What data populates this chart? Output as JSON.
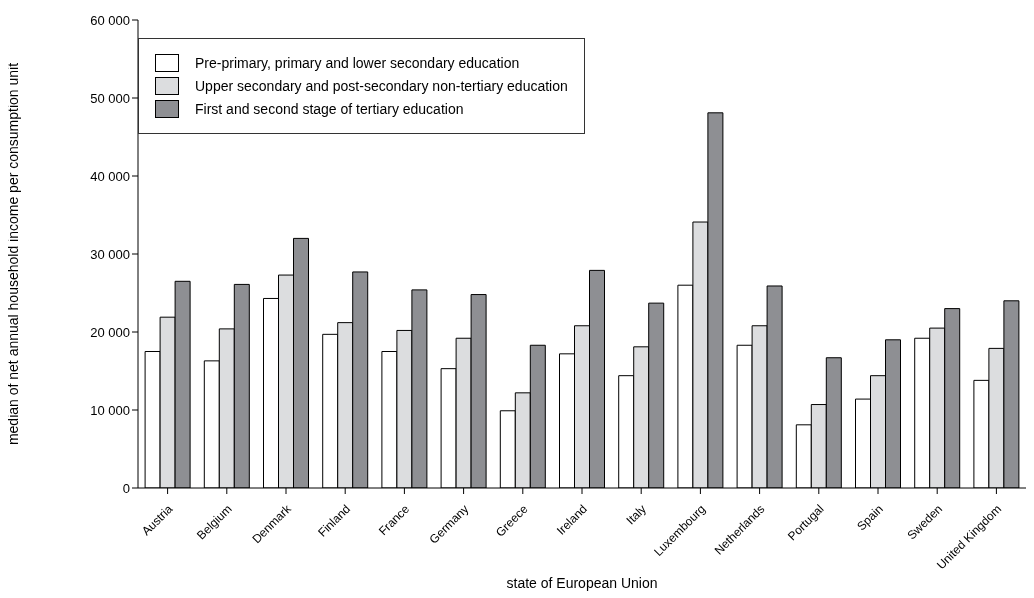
{
  "chart_data": {
    "type": "bar",
    "xlabel": "state of European Union",
    "ylabel": "median of net annual household income per consumption unit",
    "categories": [
      "Austria",
      "Belgium",
      "Denmark",
      "Finland",
      "France",
      "Germany",
      "Greece",
      "Ireland",
      "Italy",
      "Luxembourg",
      "Netherlands",
      "Portugal",
      "Spain",
      "Sweden",
      "United Kingdom"
    ],
    "series": [
      {
        "name": "Pre-primary, primary and lower secondary education",
        "color": "#ffffff",
        "values": [
          17500,
          16300,
          24300,
          19700,
          17500,
          15300,
          9900,
          17200,
          14400,
          26000,
          18300,
          8100,
          11400,
          19200,
          13800
        ]
      },
      {
        "name": "Upper secondary and post-secondary non-tertiary education",
        "color": "#dcdddf",
        "values": [
          21900,
          20400,
          27300,
          21200,
          20200,
          19200,
          12200,
          20800,
          18100,
          34100,
          20800,
          10700,
          14400,
          20500,
          17900
        ]
      },
      {
        "name": "First and second stage of tertiary education",
        "color": "#8e8f93",
        "values": [
          26500,
          26100,
          32000,
          27700,
          25400,
          24800,
          18300,
          27900,
          23700,
          48100,
          25900,
          16700,
          19000,
          23000,
          24000
        ]
      }
    ],
    "ylim": [
      0,
      60000
    ],
    "yticks": [
      0,
      {
        "value": 10000,
        "label": "10 000"
      },
      {
        "value": 20000,
        "label": "20 000"
      },
      {
        "value": 30000,
        "label": "30 000"
      },
      {
        "value": 40000,
        "label": "40 000"
      },
      {
        "value": 50000,
        "label": "50 000"
      },
      {
        "value": 60000,
        "label": "60 000"
      }
    ],
    "grid": false,
    "legend": "top left"
  }
}
